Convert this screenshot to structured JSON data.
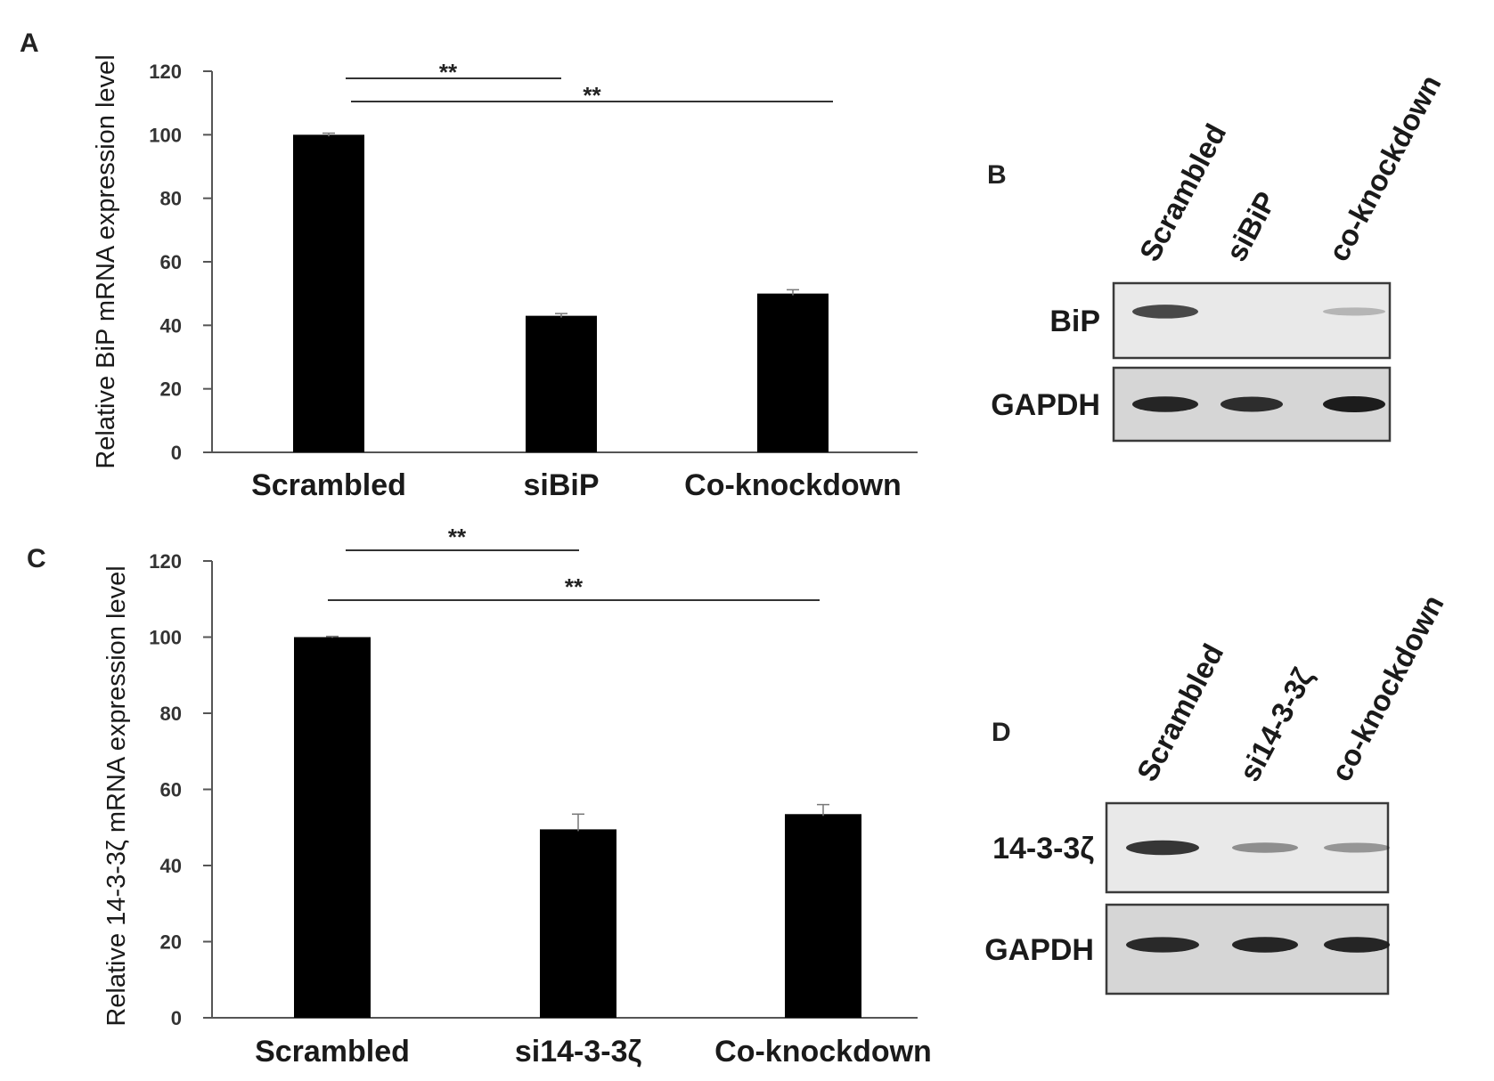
{
  "colors": {
    "bar": "#000000",
    "axis": "#555555",
    "blot_bg": "#e3e3e3",
    "band": "#1c1c1c"
  },
  "panels": {
    "A": {
      "letter": "A"
    },
    "B": {
      "letter": "B"
    },
    "C": {
      "letter": "C"
    },
    "D": {
      "letter": "D"
    }
  },
  "chart_data": [
    {
      "panel": "A",
      "type": "bar",
      "categories": [
        "Scrambled",
        "siBiP",
        "Co-knockdown"
      ],
      "values": [
        100,
        43,
        50
      ],
      "errors": [
        0.5,
        0.7,
        1.2
      ],
      "ylabel": "Relative BiP mRNA expression level",
      "ylim": [
        0,
        120
      ],
      "yticks": [
        0,
        20,
        40,
        60,
        80,
        100,
        120
      ],
      "grid": false,
      "significance": [
        {
          "from": 0,
          "to": 1,
          "label": "**"
        },
        {
          "from": 0,
          "to": 2,
          "label": "**"
        }
      ]
    },
    {
      "panel": "C",
      "type": "bar",
      "categories": [
        "Scrambled",
        "si14-3-3ζ",
        "Co-knockdown"
      ],
      "values": [
        100,
        49.5,
        53.5
      ],
      "errors": [
        0.2,
        4,
        2.5
      ],
      "ylabel": "Relative 14-3-3ζ mRNA expression level",
      "ylim": [
        0,
        120
      ],
      "yticks": [
        0,
        20,
        40,
        60,
        80,
        100,
        120
      ],
      "grid": false,
      "significance": [
        {
          "from": 0,
          "to": 1,
          "label": "**"
        },
        {
          "from": 0,
          "to": 2,
          "label": "**"
        }
      ]
    }
  ],
  "blots": [
    {
      "panel": "B",
      "lanes": [
        "Scrambled",
        "siBiP",
        "co-knockdown"
      ],
      "rows": [
        {
          "label": "BiP",
          "intensity": [
            0.75,
            0,
            0.12
          ]
        },
        {
          "label": "GAPDH",
          "intensity": [
            0.95,
            0.9,
            1.0
          ]
        }
      ]
    },
    {
      "panel": "D",
      "lanes": [
        "Scrambled",
        "si14-3-3ζ",
        "co-knockdown"
      ],
      "rows": [
        {
          "label": "14-3-3ζ",
          "intensity": [
            0.85,
            0.35,
            0.3
          ]
        },
        {
          "label": "GAPDH",
          "intensity": [
            0.92,
            0.95,
            0.95
          ]
        }
      ]
    }
  ]
}
